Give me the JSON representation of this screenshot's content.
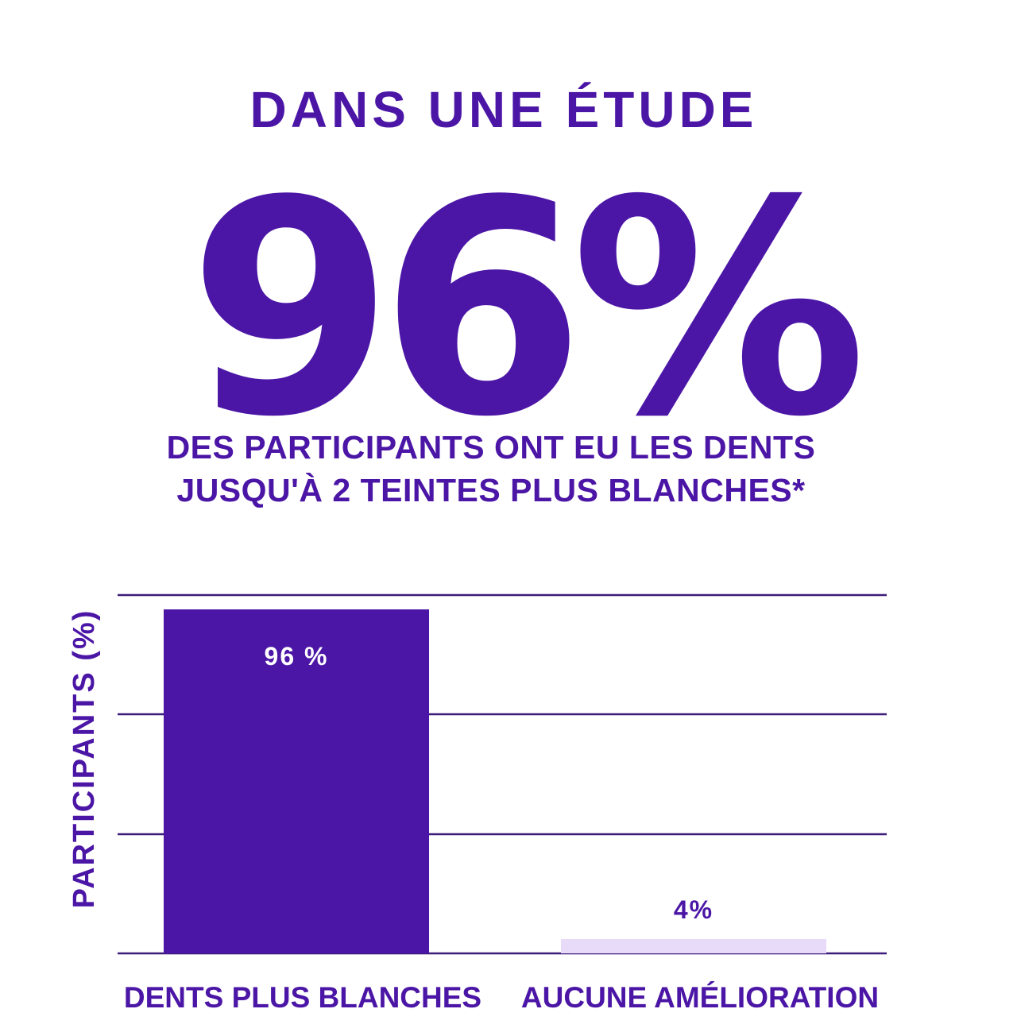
{
  "headline": {
    "top": "DANS UNE ÉTUDE",
    "big": "96%",
    "sub_line1": "DES PARTICIPANTS ONT EU LES DENTS",
    "sub_line2": "JUSQU'À 2 TEINTES PLUS BLANCHES*"
  },
  "colors": {
    "accent": "#4b16a6",
    "bar_primary": "#4b16a6",
    "bar_secondary": "#e7dbf9",
    "gridline": "#3d1b78",
    "data_label_light": "#ffffff",
    "background": "#ffffff"
  },
  "chart_data": {
    "type": "bar",
    "categories": [
      "DENTS PLUS BLANCHES",
      "AUCUNE AMÉLIORATION"
    ],
    "values": [
      96,
      4
    ],
    "data_labels": [
      "96 %",
      "4%"
    ],
    "ylabel": "PARTICIPANTS (%)",
    "xlabel": "",
    "ylim": [
      0,
      100
    ],
    "gridlines": [
      0,
      33.3,
      66.7,
      100
    ],
    "grid": true,
    "legend": "none"
  }
}
